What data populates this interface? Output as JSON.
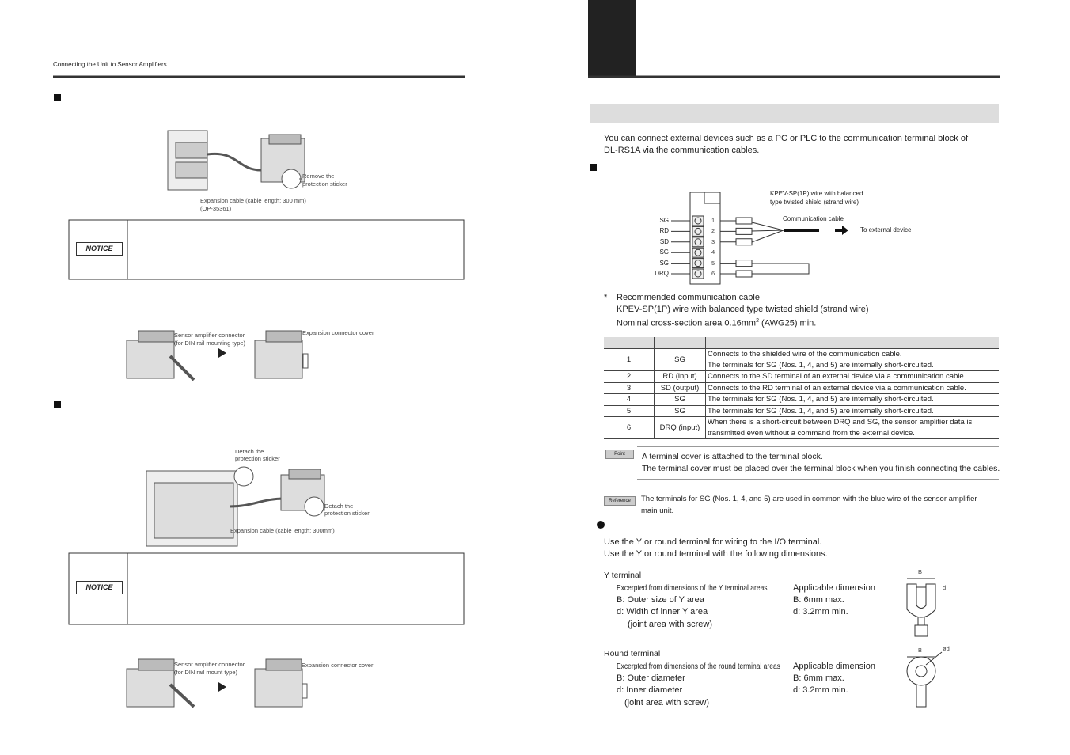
{
  "left_page": {
    "header": "Connecting the Unit to Sensor Amplifiers",
    "figure_1": {
      "sticker_label": [
        "Remove the",
        "protection sticker"
      ],
      "cable_label": [
        "Expansion cable (cable length: 300 mm)",
        "(OP-35361)"
      ]
    },
    "notice_1": "NOTICE",
    "figure_2": {
      "connector_label": [
        "Sensor amplifier connector",
        "(for DIN rail mounting type)"
      ],
      "cover_label": "Expansion connector cover"
    },
    "figure_3": {
      "sticker_label_1": [
        "Detach the",
        "protection sticker"
      ],
      "sticker_label_2": [
        "Detach the",
        "protection sticker"
      ],
      "cable_label": "Expansion cable (cable length: 300mm)"
    },
    "notice_2": "NOTICE",
    "figure_4": {
      "connector_label": [
        "Sensor amplifier connector",
        "(for DIN rail mount type)"
      ],
      "cover_label": "Expansion connector cover"
    }
  },
  "right_page": {
    "intro": [
      "You can connect external devices such as a PC or PLC to the communication terminal block of",
      "DL-RS1A via the communication cables."
    ],
    "diagram": {
      "cable_spec": [
        "KPEV-SP(1P) wire with balanced",
        "type twisted shield (strand wire)"
      ],
      "cable_label": "Communication cable",
      "destination": "To external device",
      "terminals": [
        "SG",
        "RD",
        "SD",
        "SG",
        "SG",
        "DRQ"
      ],
      "terminal_numbers": [
        1,
        2,
        3,
        4,
        5,
        6
      ]
    },
    "note": {
      "marker": "*",
      "lines": [
        "Recommended communication cable",
        "KPEV-SP(1P) wire with balanced type twisted shield (strand wire)",
        "Nominal cross-section area 0.16mm"
      ],
      "superscript": "2",
      "suffix": "(AWG25) min."
    },
    "table": {
      "rows": [
        {
          "no": 1,
          "terminal": "SG",
          "description": [
            "Connects to the shielded wire of the communication cable.",
            "The terminals for SG (Nos. 1, 4, and 5) are internally short-circuited."
          ]
        },
        {
          "no": 2,
          "terminal": "RD (input)",
          "description": [
            "Connects to the SD terminal of an external device via a communication cable."
          ]
        },
        {
          "no": 3,
          "terminal": "SD (output)",
          "description": [
            "Connects to the RD terminal of an external device via a communication cable."
          ]
        },
        {
          "no": 4,
          "terminal": "SG",
          "description": [
            "The terminals for SG (Nos. 1, 4, and 5) are internally short-circuited."
          ]
        },
        {
          "no": 5,
          "terminal": "SG",
          "description": [
            "The terminals for SG (Nos. 1, 4, and 5) are internally short-circuited."
          ]
        },
        {
          "no": 6,
          "terminal": "DRQ (input)",
          "description": [
            "When there is a short-circuit between DRQ and SG, the sensor amplifier data is",
            "transmitted even without a command from the external device."
          ]
        }
      ]
    },
    "point": {
      "label": "Point",
      "lines": [
        "A terminal cover is attached to the terminal block.",
        "The terminal cover must be placed over the terminal block when you finish connecting the cables."
      ]
    },
    "reference": {
      "label": "Reference",
      "lines": [
        "The terminals for SG (Nos. 1, 4, and 5) are used in common with the blue wire of the sensor amplifier",
        "main unit."
      ]
    },
    "terminal_usage": [
      "Use the Y or round terminal for wiring to the I/O terminal.",
      "Use the Y or round terminal with the following dimensions."
    ],
    "y_terminal": {
      "title": "Y terminal",
      "excerpt": "Excerpted from dimensions of the Y terminal areas",
      "applicable": "Applicable dimension",
      "items": [
        [
          "B: Outer size of Y area",
          "B: 6mm max."
        ],
        [
          "d: Width of inner Y area",
          "d: 3.2mm min."
        ]
      ],
      "joint": "(joint area with screw)",
      "diagram_labels": [
        "B",
        "d"
      ]
    },
    "round_terminal": {
      "title": "Round terminal",
      "excerpt": "Excerpted from dimensions of the round terminal areas",
      "applicable": "Applicable dimension",
      "items": [
        [
          "B: Outer diameter",
          "B: 6mm max."
        ],
        [
          "d: Inner diameter",
          "d: 3.2mm min."
        ]
      ],
      "joint": "(joint area with screw)",
      "diagram_labels": [
        "B",
        "ød"
      ]
    }
  }
}
